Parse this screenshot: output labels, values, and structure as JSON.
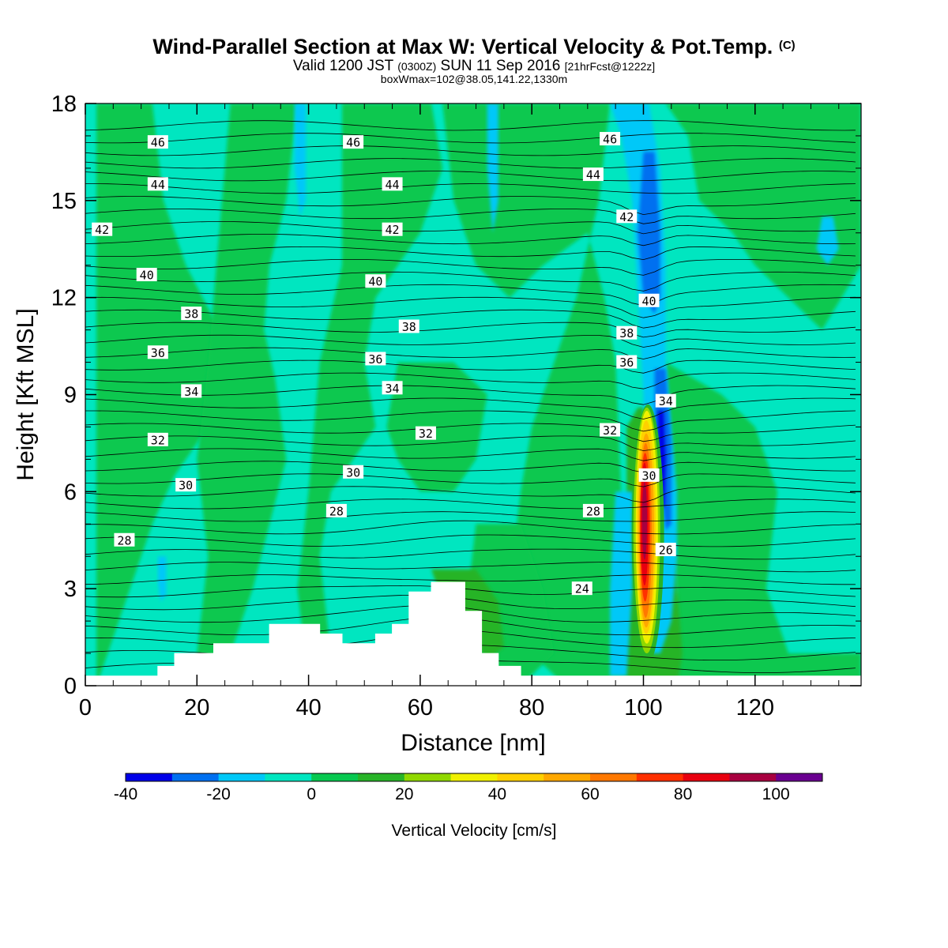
{
  "title": "Wind-Parallel Section at Max W: Vertical Velocity & Pot.Temp.",
  "copyright": "(C)",
  "subtitle_main": "Valid 1200 JST",
  "subtitle_utc": "(0300Z)",
  "subtitle_date": "SUN 11 Sep 2016",
  "subtitle_fcst": "[21hrFcst@1222z]",
  "subtitle2": "boxWmax=102@38.05,141.22,1330m",
  "chart_data": {
    "type": "heatmap",
    "xlabel": "Distance [nm]",
    "ylabel": "Height [Kft MSL]",
    "xlim": [
      0,
      139
    ],
    "ylim": [
      0,
      18
    ],
    "x_ticks": [
      0,
      20,
      40,
      60,
      80,
      100,
      120
    ],
    "y_ticks": [
      0,
      3,
      6,
      9,
      12,
      15,
      18
    ],
    "colorbar": {
      "label": "Vertical Velocity [cm/s]",
      "levels": [
        -40,
        -30,
        -20,
        -10,
        0,
        10,
        20,
        30,
        40,
        50,
        60,
        70,
        80,
        90,
        100,
        110
      ],
      "colors": [
        "#0000e8",
        "#0070f0",
        "#00c8f8",
        "#00e6c0",
        "#08c850",
        "#28b428",
        "#90d800",
        "#f0f000",
        "#ffd000",
        "#ffa800",
        "#ff7800",
        "#ff3000",
        "#e80010",
        "#a80040",
        "#6a0090"
      ],
      "tick_labels": [
        "-40",
        "-20",
        "0",
        "20",
        "40",
        "60",
        "80",
        "100"
      ]
    },
    "terrain_profile": [
      [
        0,
        0.3
      ],
      [
        13,
        0.3
      ],
      [
        13,
        0.6
      ],
      [
        16,
        0.6
      ],
      [
        16,
        1.0
      ],
      [
        23,
        1.0
      ],
      [
        23,
        1.3
      ],
      [
        33,
        1.3
      ],
      [
        33,
        1.9
      ],
      [
        42,
        1.9
      ],
      [
        42,
        1.6
      ],
      [
        46,
        1.6
      ],
      [
        46,
        1.3
      ],
      [
        52,
        1.3
      ],
      [
        52,
        1.6
      ],
      [
        55,
        1.6
      ],
      [
        55,
        1.9
      ],
      [
        58,
        1.9
      ],
      [
        58,
        2.9
      ],
      [
        62,
        2.9
      ],
      [
        62,
        3.2
      ],
      [
        68,
        3.2
      ],
      [
        68,
        2.3
      ],
      [
        71,
        2.3
      ],
      [
        71,
        1.0
      ],
      [
        74,
        1.0
      ],
      [
        74,
        0.6
      ],
      [
        78,
        0.6
      ],
      [
        78,
        0.3
      ],
      [
        139,
        0.3
      ]
    ],
    "updraft_max": 102,
    "theta_contour_labels": [
      {
        "label": "46",
        "x": 13,
        "y": 16.8
      },
      {
        "label": "46",
        "x": 48,
        "y": 16.8
      },
      {
        "label": "46",
        "x": 94,
        "y": 16.9
      },
      {
        "label": "44",
        "x": 13,
        "y": 15.5
      },
      {
        "label": "44",
        "x": 55,
        "y": 15.5
      },
      {
        "label": "44",
        "x": 91,
        "y": 15.8
      },
      {
        "label": "42",
        "x": 3,
        "y": 14.1
      },
      {
        "label": "42",
        "x": 55,
        "y": 14.1
      },
      {
        "label": "42",
        "x": 97,
        "y": 14.5
      },
      {
        "label": "40",
        "x": 11,
        "y": 12.7
      },
      {
        "label": "40",
        "x": 52,
        "y": 12.5
      },
      {
        "label": "40",
        "x": 101,
        "y": 11.9
      },
      {
        "label": "38",
        "x": 19,
        "y": 11.5
      },
      {
        "label": "38",
        "x": 58,
        "y": 11.1
      },
      {
        "label": "38",
        "x": 97,
        "y": 10.9
      },
      {
        "label": "36",
        "x": 13,
        "y": 10.3
      },
      {
        "label": "36",
        "x": 52,
        "y": 10.1
      },
      {
        "label": "36",
        "x": 97,
        "y": 10.0
      },
      {
        "label": "34",
        "x": 19,
        "y": 9.1
      },
      {
        "label": "34",
        "x": 55,
        "y": 9.2
      },
      {
        "label": "34",
        "x": 104,
        "y": 8.8
      },
      {
        "label": "32",
        "x": 13,
        "y": 7.6
      },
      {
        "label": "32",
        "x": 61,
        "y": 7.8
      },
      {
        "label": "32",
        "x": 94,
        "y": 7.9
      },
      {
        "label": "30",
        "x": 18,
        "y": 6.2
      },
      {
        "label": "30",
        "x": 48,
        "y": 6.6
      },
      {
        "label": "30",
        "x": 101,
        "y": 6.5
      },
      {
        "label": "28",
        "x": 7,
        "y": 4.5
      },
      {
        "label": "28",
        "x": 45,
        "y": 5.4
      },
      {
        "label": "28",
        "x": 91,
        "y": 5.4
      },
      {
        "label": "26",
        "x": 104,
        "y": 4.2
      },
      {
        "label": "24",
        "x": 89,
        "y": 3.0
      }
    ]
  }
}
